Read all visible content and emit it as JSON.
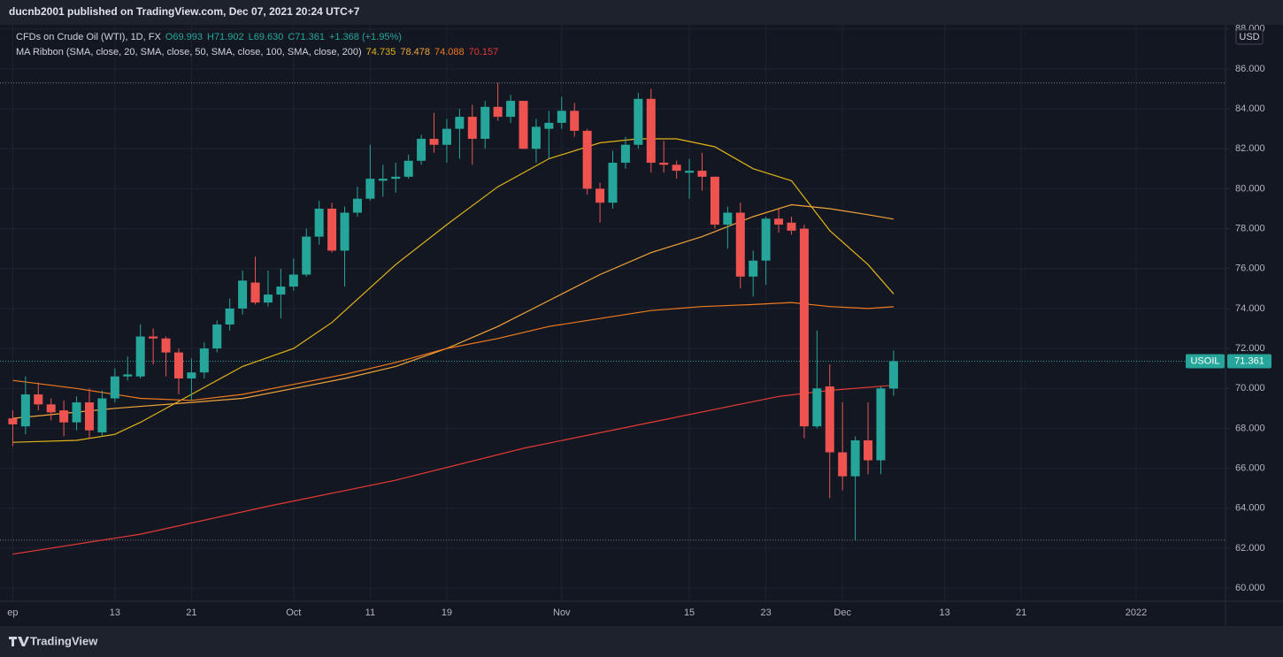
{
  "header": "ducnb2001 published on TradingView.com, Dec 07, 2021 20:24 UTC+7",
  "brand": "TradingView",
  "legend": {
    "symbol": "CFDs on Crude Oil (WTI), 1D, FX",
    "ohlc": [
      "O69.993",
      "H71.902",
      "L69.630",
      "C71.361"
    ],
    "change": "+1.368 (+1.95%)",
    "ma_title": "MA Ribbon (SMA, close, 20, SMA, close, 50, SMA, close, 100, SMA, close, 200)",
    "ma_values": [
      "74.735",
      "78.478",
      "74.088",
      "70.157"
    ]
  },
  "chart_data": {
    "type": "candlestick",
    "ticker": "USOIL",
    "currency": "USD",
    "up_color": "#26a69a",
    "down_color": "#ef5350",
    "grid": true,
    "x": [
      "2021-09-01",
      "2021-09-02",
      "2021-09-03",
      "2021-09-06",
      "2021-09-07",
      "2021-09-08",
      "2021-09-09",
      "2021-09-10",
      "2021-09-13",
      "2021-09-14",
      "2021-09-15",
      "2021-09-16",
      "2021-09-17",
      "2021-09-20",
      "2021-09-21",
      "2021-09-22",
      "2021-09-23",
      "2021-09-24",
      "2021-09-27",
      "2021-09-28",
      "2021-09-29",
      "2021-09-30",
      "2021-10-01",
      "2021-10-04",
      "2021-10-05",
      "2021-10-06",
      "2021-10-07",
      "2021-10-08",
      "2021-10-11",
      "2021-10-12",
      "2021-10-13",
      "2021-10-14",
      "2021-10-15",
      "2021-10-18",
      "2021-10-19",
      "2021-10-20",
      "2021-10-21",
      "2021-10-22",
      "2021-10-25",
      "2021-10-26",
      "2021-10-27",
      "2021-10-28",
      "2021-10-29",
      "2021-11-01",
      "2021-11-02",
      "2021-11-03",
      "2021-11-04",
      "2021-11-05",
      "2021-11-08",
      "2021-11-09",
      "2021-11-10",
      "2021-11-11",
      "2021-11-12",
      "2021-11-15",
      "2021-11-16",
      "2021-11-17",
      "2021-11-18",
      "2021-11-19",
      "2021-11-22",
      "2021-11-23",
      "2021-11-24",
      "2021-11-25",
      "2021-11-26",
      "2021-11-29",
      "2021-11-30",
      "2021-12-01",
      "2021-12-02",
      "2021-12-03",
      "2021-12-06",
      "2021-12-07"
    ],
    "open": [
      68.5,
      68.1,
      69.7,
      69.2,
      68.9,
      68.3,
      69.3,
      67.8,
      69.5,
      70.6,
      70.6,
      72.6,
      72.5,
      71.8,
      70.5,
      70.8,
      72.0,
      73.2,
      74.0,
      75.3,
      74.3,
      74.7,
      75.1,
      75.7,
      77.6,
      79.0,
      76.9,
      78.8,
      79.5,
      80.4,
      80.5,
      80.6,
      81.4,
      82.5,
      82.2,
      83.0,
      83.6,
      82.5,
      84.1,
      83.6,
      84.4,
      82.0,
      83.0,
      83.3,
      83.9,
      82.9,
      80.0,
      79.3,
      81.3,
      82.2,
      84.5,
      81.3,
      81.2,
      80.8,
      80.9,
      80.6,
      78.2,
      78.8,
      75.6,
      76.4,
      78.5,
      78.3,
      78.0,
      68.1,
      70.1,
      66.8,
      65.6,
      67.4,
      66.4,
      69.993
    ],
    "high": [
      68.9,
      70.6,
      70.3,
      69.5,
      69.4,
      69.6,
      70.0,
      69.9,
      71.0,
      71.6,
      73.2,
      73.0,
      72.6,
      72.0,
      71.5,
      72.3,
      73.4,
      74.5,
      75.9,
      76.6,
      75.9,
      76.0,
      76.5,
      78.0,
      79.4,
      79.3,
      79.1,
      80.1,
      82.2,
      81.2,
      81.3,
      81.7,
      82.7,
      83.8,
      83.5,
      84.0,
      84.2,
      84.4,
      85.3,
      84.7,
      84.4,
      83.5,
      83.9,
      84.6,
      84.3,
      83.0,
      80.3,
      81.9,
      82.6,
      84.8,
      85.0,
      82.4,
      81.4,
      81.5,
      81.8,
      80.6,
      79.1,
      79.3,
      76.9,
      78.6,
      79.0,
      78.6,
      78.2,
      72.9,
      71.2,
      69.3,
      67.6,
      69.3,
      70.1,
      71.902
    ],
    "low": [
      67.1,
      67.7,
      68.9,
      68.4,
      67.6,
      67.9,
      67.5,
      67.6,
      69.3,
      70.4,
      70.5,
      71.2,
      70.6,
      69.7,
      69.4,
      70.5,
      71.8,
      72.9,
      73.7,
      74.2,
      74.1,
      73.5,
      74.9,
      75.6,
      77.2,
      76.8,
      75.1,
      78.6,
      79.4,
      79.6,
      79.8,
      80.5,
      81.2,
      81.8,
      81.3,
      81.5,
      81.2,
      82.0,
      83.4,
      83.3,
      82.0,
      81.3,
      81.5,
      83.0,
      82.6,
      79.7,
      78.3,
      79.0,
      81.0,
      82.0,
      80.8,
      80.8,
      80.5,
      79.5,
      79.9,
      78.0,
      77.0,
      75.0,
      74.6,
      75.2,
      77.8,
      77.7,
      67.5,
      68.0,
      64.5,
      64.9,
      62.4,
      65.7,
      65.7,
      69.63
    ],
    "close": [
      68.2,
      69.7,
      69.2,
      68.8,
      68.3,
      69.3,
      67.9,
      69.5,
      70.6,
      70.7,
      72.6,
      72.5,
      71.8,
      70.5,
      70.8,
      72.0,
      73.2,
      74.0,
      75.4,
      74.3,
      74.7,
      75.1,
      75.7,
      77.6,
      79.0,
      76.9,
      78.8,
      79.5,
      80.5,
      80.5,
      80.6,
      81.4,
      82.5,
      82.2,
      83.0,
      83.6,
      82.5,
      84.1,
      83.6,
      84.4,
      82.0,
      83.1,
      83.3,
      83.9,
      82.9,
      80.0,
      79.3,
      81.3,
      82.2,
      84.5,
      81.3,
      81.2,
      80.9,
      80.9,
      80.6,
      78.2,
      78.8,
      75.6,
      76.4,
      78.5,
      78.2,
      77.9,
      68.1,
      70.0,
      66.8,
      65.6,
      67.4,
      66.4,
      70.0,
      71.361
    ],
    "series": [
      {
        "name": "SMA 20",
        "color": "#e0b418",
        "x": [
          "2021-09-01",
          "2021-09-08",
          "2021-09-13",
          "2021-09-15",
          "2021-09-21",
          "2021-09-27",
          "2021-10-01",
          "2021-10-06",
          "2021-10-13",
          "2021-10-19",
          "2021-10-25",
          "2021-10-29",
          "2021-11-04",
          "2021-11-09",
          "2021-11-12",
          "2021-11-17",
          "2021-11-22",
          "2021-11-25",
          "2021-11-30",
          "2021-12-03",
          "2021-12-07"
        ],
        "values": [
          67.3,
          67.4,
          67.7,
          68.3,
          69.7,
          71.1,
          72.0,
          73.3,
          76.2,
          78.2,
          80.1,
          81.5,
          82.3,
          82.5,
          82.5,
          82.1,
          81.0,
          80.4,
          77.9,
          76.2,
          74.735
        ]
      },
      {
        "name": "SMA 50",
        "color": "#f0a43a",
        "x": [
          "2021-09-01",
          "2021-09-13",
          "2021-09-21",
          "2021-09-27",
          "2021-10-01",
          "2021-10-07",
          "2021-10-13",
          "2021-10-19",
          "2021-10-25",
          "2021-10-29",
          "2021-11-04",
          "2021-11-10",
          "2021-11-16",
          "2021-11-22",
          "2021-11-25",
          "2021-11-30",
          "2021-12-03",
          "2021-12-07"
        ],
        "values": [
          68.5,
          69.0,
          69.3,
          69.5,
          70.0,
          70.5,
          71.1,
          72.0,
          73.1,
          74.4,
          75.7,
          76.8,
          77.6,
          78.6,
          79.2,
          79.0,
          78.7,
          78.478
        ]
      },
      {
        "name": "SMA 100",
        "color": "#f07a1e",
        "x": [
          "2021-09-01",
          "2021-09-08",
          "2021-09-15",
          "2021-09-21",
          "2021-09-27",
          "2021-10-01",
          "2021-10-07",
          "2021-10-13",
          "2021-10-19",
          "2021-10-25",
          "2021-10-29",
          "2021-11-04",
          "2021-11-10",
          "2021-11-16",
          "2021-11-22",
          "2021-11-25",
          "2021-11-30",
          "2021-12-03",
          "2021-12-07"
        ],
        "values": [
          70.4,
          70.0,
          69.5,
          69.4,
          69.7,
          70.2,
          70.7,
          71.3,
          72.0,
          72.5,
          73.1,
          73.5,
          73.9,
          74.1,
          74.2,
          74.3,
          74.1,
          74.0,
          74.088
        ]
      },
      {
        "name": "SMA 200",
        "color": "#e53935",
        "x": [
          "2021-09-01",
          "2021-09-15",
          "2021-09-29",
          "2021-10-13",
          "2021-10-27",
          "2021-11-10",
          "2021-11-24",
          "2021-11-30",
          "2021-12-07"
        ],
        "values": [
          61.7,
          62.7,
          64.1,
          65.4,
          67.0,
          68.3,
          69.6,
          69.9,
          70.157
        ]
      }
    ],
    "xlim": [
      "2021-08-31",
      "2022-01-12"
    ],
    "xticks": [
      {
        "value": "2021-09-01",
        "label": "ep"
      },
      {
        "value": "2021-09-13",
        "label": "13"
      },
      {
        "value": "2021-09-21",
        "label": "21"
      },
      {
        "value": "2021-10-01",
        "label": "Oct"
      },
      {
        "value": "2021-10-11",
        "label": "11"
      },
      {
        "value": "2021-10-19",
        "label": "19"
      },
      {
        "value": "2021-11-01",
        "label": "Nov"
      },
      {
        "value": "2021-11-15",
        "label": "15"
      },
      {
        "value": "2021-11-23",
        "label": "23"
      },
      {
        "value": "2021-12-01",
        "label": "Dec"
      },
      {
        "value": "2021-12-13",
        "label": "13"
      },
      {
        "value": "2021-12-21",
        "label": "21"
      },
      {
        "value": "2022-01-03",
        "label": "2022"
      }
    ],
    "ylim": [
      59.34,
      88.21
    ],
    "yticks": [
      {
        "value": 60,
        "label": "60.000"
      },
      {
        "value": 62,
        "label": "62.000"
      },
      {
        "value": 64,
        "label": "64.000"
      },
      {
        "value": 66,
        "label": "66.000"
      },
      {
        "value": 68,
        "label": "68.000"
      },
      {
        "value": 70,
        "label": "70.000"
      },
      {
        "value": 72,
        "label": "72.000"
      },
      {
        "value": 74,
        "label": "74.000"
      },
      {
        "value": 76,
        "label": "76.000"
      },
      {
        "value": 78,
        "label": "78.000"
      },
      {
        "value": 80,
        "label": "80.000"
      },
      {
        "value": 82,
        "label": "82.000"
      },
      {
        "value": 84,
        "label": "84.000"
      },
      {
        "value": 86,
        "label": "86.000"
      },
      {
        "value": 88,
        "label": "88.000"
      }
    ]
  }
}
